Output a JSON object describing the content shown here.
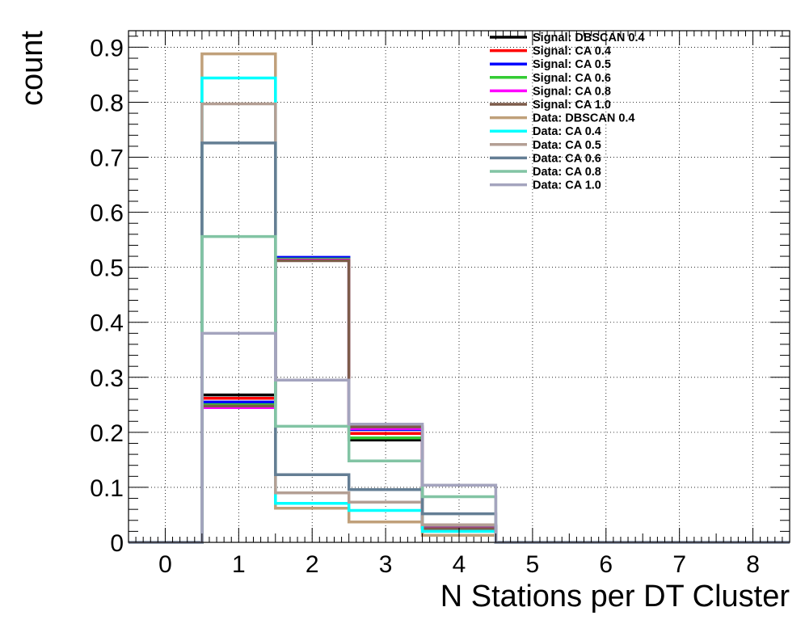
{
  "chart_data": {
    "type": "histogram",
    "title": "",
    "xlabel": "N Stations per DT Cluster",
    "ylabel": "count",
    "xlim": [
      -0.5,
      8.5
    ],
    "ylim": [
      0,
      0.93
    ],
    "x_ticks": [
      "0",
      "1",
      "2",
      "3",
      "4",
      "5",
      "6",
      "7",
      "8"
    ],
    "y_ticks": [
      "0",
      "0.1",
      "0.2",
      "0.3",
      "0.4",
      "0.5",
      "0.6",
      "0.7",
      "0.8",
      "0.9"
    ],
    "x_tick_values": [
      0,
      1,
      2,
      3,
      4,
      5,
      6,
      7,
      8
    ],
    "y_tick_values": [
      0,
      0.1,
      0.2,
      0.3,
      0.4,
      0.5,
      0.6,
      0.7,
      0.8,
      0.9
    ],
    "bin_edges": [
      -0.5,
      0.5,
      1.5,
      2.5,
      3.5,
      4.5,
      5.5,
      6.5,
      7.5,
      8.5
    ],
    "grid": true,
    "legend_position": "top-right",
    "series": [
      {
        "name": "Signal: DBSCAN 0.4",
        "color": "#000000",
        "values": [
          0,
          0.268,
          0.515,
          0.186,
          0.03,
          0,
          0,
          0,
          0
        ]
      },
      {
        "name": "Signal: CA 0.4",
        "color": "#ff0000",
        "values": [
          0,
          0.262,
          0.515,
          0.198,
          0.028,
          0,
          0,
          0,
          0
        ]
      },
      {
        "name": "Signal: CA 0.5",
        "color": "#0000ff",
        "values": [
          0,
          0.255,
          0.518,
          0.205,
          0.028,
          0,
          0,
          0,
          0
        ]
      },
      {
        "name": "Signal: CA 0.6",
        "color": "#33cc33",
        "values": [
          0,
          0.25,
          0.515,
          0.19,
          0.027,
          0,
          0,
          0,
          0
        ]
      },
      {
        "name": "Signal: CA 0.8",
        "color": "#ff00ff",
        "values": [
          0,
          0.245,
          0.513,
          0.207,
          0.026,
          0,
          0,
          0,
          0
        ]
      },
      {
        "name": "Signal: CA 1.0",
        "color": "#7d5b4a",
        "values": [
          0,
          0.248,
          0.512,
          0.21,
          0.025,
          0,
          0,
          0,
          0
        ]
      },
      {
        "name": "Data: DBSCAN 0.4",
        "color": "#c0a07a",
        "values": [
          0,
          0.888,
          0.062,
          0.037,
          0.013,
          0,
          0,
          0,
          0
        ]
      },
      {
        "name": "Data: CA 0.4",
        "color": "#00ffff",
        "values": [
          0,
          0.844,
          0.071,
          0.058,
          0.02,
          0,
          0,
          0,
          0
        ]
      },
      {
        "name": "Data: CA 0.5",
        "color": "#b49f94",
        "values": [
          0,
          0.797,
          0.09,
          0.073,
          0.032,
          0,
          0,
          0,
          0
        ]
      },
      {
        "name": "Data: CA 0.6",
        "color": "#647e94",
        "values": [
          0,
          0.726,
          0.123,
          0.096,
          0.052,
          0,
          0,
          0,
          0
        ]
      },
      {
        "name": "Data: CA 0.8",
        "color": "#82c4a4",
        "values": [
          0,
          0.556,
          0.211,
          0.148,
          0.083,
          0,
          0,
          0,
          0
        ]
      },
      {
        "name": "Data: CA 1.0",
        "color": "#a4a4be",
        "values": [
          0,
          0.38,
          0.295,
          0.215,
          0.104,
          0,
          0,
          0,
          0
        ]
      }
    ]
  }
}
